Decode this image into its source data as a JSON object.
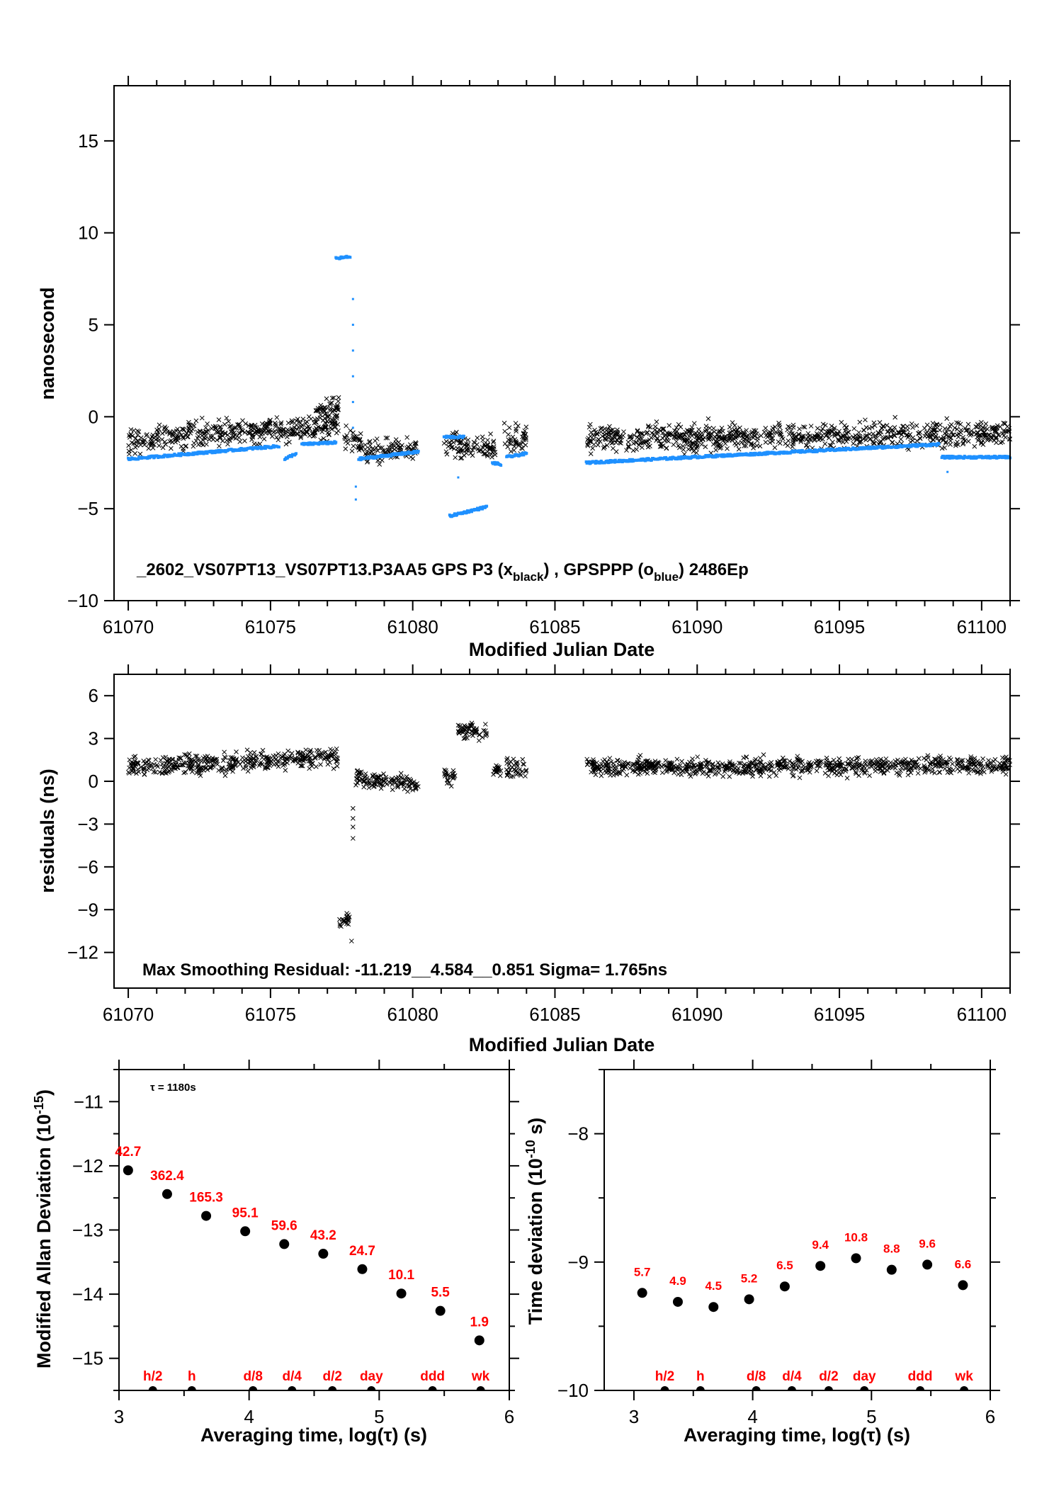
{
  "colors": {
    "series_black": "#000000",
    "series_blue": "#1e90ff",
    "label_red": "#ff0000",
    "axis": "#000000"
  },
  "chart_data": [
    {
      "id": "clock-offset",
      "type": "scatter",
      "title": "",
      "xlabel": "Modified Julian Date",
      "ylabel": "nanosecond",
      "xlim": [
        61069.5,
        61101
      ],
      "ylim": [
        -10,
        18
      ],
      "xticks": [
        61070,
        61075,
        61080,
        61085,
        61090,
        61095,
        61100
      ],
      "xtick_labels": [
        "61070",
        "61075",
        "61080",
        "61085",
        "61090",
        "61095",
        "61100"
      ],
      "yticks": [
        -10,
        -5,
        0,
        5,
        10,
        15
      ],
      "ytick_labels": [
        "−10",
        "−5",
        "0",
        "5",
        "10",
        "15"
      ],
      "annotation": {
        "prefix": "_2602_VS07PT13_VS07PT13.P3AA5    GPS P3 (x",
        "sub1": "black",
        "mid": ") ,  GPSPPP (o",
        "sub2": "blue",
        "suffix": ")  2486Ep"
      },
      "series": [
        {
          "name": "GPS P3 (x black)",
          "marker": "x",
          "color": "#000000",
          "segments": [
            {
              "x0": 61070.0,
              "x1": 61077.4,
              "y0": -1.3,
              "y1": -0.4,
              "spread": 0.9
            },
            {
              "x0": 61076.6,
              "x1": 61077.4,
              "y0": 0.2,
              "y1": 0.6,
              "spread": 0.7
            },
            {
              "x0": 61077.6,
              "x1": 61078.2,
              "y0": -1.2,
              "y1": -1.4,
              "spread": 0.9
            },
            {
              "x0": 61078.3,
              "x1": 61080.2,
              "y0": -2.0,
              "y1": -1.8,
              "spread": 0.8
            },
            {
              "x0": 61081.1,
              "x1": 61082.9,
              "y0": -1.6,
              "y1": -1.6,
              "spread": 0.9
            },
            {
              "x0": 61083.2,
              "x1": 61084.0,
              "y0": -1.2,
              "y1": -1.2,
              "spread": 0.9
            },
            {
              "x0": 61086.1,
              "x1": 61101.0,
              "y0": -1.2,
              "y1": -0.9,
              "spread": 0.9
            }
          ]
        },
        {
          "name": "GPSPPP (o blue)",
          "marker": "o",
          "color": "#1e90ff",
          "segments": [
            {
              "x0": 61070.0,
              "x1": 61075.3,
              "y0": -2.3,
              "y1": -1.6
            },
            {
              "x0": 61075.5,
              "x1": 61075.9,
              "y0": -2.3,
              "y1": -2.0
            },
            {
              "x0": 61076.1,
              "x1": 61077.3,
              "y0": -1.5,
              "y1": -1.4
            },
            {
              "x0": 61077.3,
              "x1": 61077.8,
              "y0": 8.6,
              "y1": 8.7
            },
            {
              "x0": 61078.1,
              "x1": 61080.2,
              "y0": -2.3,
              "y1": -1.9
            },
            {
              "x0": 61081.1,
              "x1": 61081.8,
              "y0": -1.1,
              "y1": -1.1
            },
            {
              "x0": 61081.3,
              "x1": 61082.6,
              "y0": -5.4,
              "y1": -4.9
            },
            {
              "x0": 61082.8,
              "x1": 61083.1,
              "y0": -2.5,
              "y1": -2.6
            },
            {
              "x0": 61083.3,
              "x1": 61084.0,
              "y0": -2.2,
              "y1": -2.0
            },
            {
              "x0": 61086.1,
              "x1": 61098.5,
              "y0": -2.5,
              "y1": -1.5
            },
            {
              "x0": 61098.6,
              "x1": 61101.0,
              "y0": -2.2,
              "y1": -2.2
            }
          ],
          "transition_points": [
            [
              61077.9,
              6.4
            ],
            [
              61077.9,
              5.0
            ],
            [
              61077.9,
              3.6
            ],
            [
              61077.9,
              2.2
            ],
            [
              61077.9,
              0.8
            ],
            [
              61077.9,
              -0.6
            ],
            [
              61078.0,
              -3.8
            ],
            [
              61078.0,
              -4.5
            ],
            [
              61081.6,
              -3.3
            ],
            [
              61098.8,
              -3.0
            ]
          ]
        }
      ]
    },
    {
      "id": "residuals",
      "type": "scatter",
      "title": "",
      "xlabel": "Modified Julian Date",
      "ylabel": "residuals (ns)",
      "xlim": [
        61069.5,
        61101
      ],
      "ylim": [
        -14.5,
        7.5
      ],
      "xticks": [
        61070,
        61075,
        61080,
        61085,
        61090,
        61095,
        61100
      ],
      "xtick_labels": [
        "61070",
        "61075",
        "61080",
        "61085",
        "61090",
        "61095",
        "61100"
      ],
      "yticks": [
        -12,
        -9,
        -6,
        -3,
        0,
        3,
        6
      ],
      "ytick_labels": [
        "−12",
        "−9",
        "−6",
        "−3",
        "0",
        "3",
        "6"
      ],
      "annotation": "Max Smoothing Residual: -11.219__4.584__0.851  Sigma= 1.765ns",
      "series": [
        {
          "name": "residuals",
          "marker": "x",
          "color": "#000000",
          "segments": [
            {
              "x0": 61070.0,
              "x1": 61077.4,
              "y0": 1.0,
              "y1": 1.7,
              "spread": 0.9
            },
            {
              "x0": 61077.4,
              "x1": 61077.8,
              "y0": -10.0,
              "y1": -9.5,
              "spread": 0.6
            },
            {
              "x0": 61078.0,
              "x1": 61080.2,
              "y0": 0.2,
              "y1": -0.2,
              "spread": 0.8
            },
            {
              "x0": 61081.1,
              "x1": 61081.5,
              "y0": 0.3,
              "y1": 0.5,
              "spread": 0.9
            },
            {
              "x0": 61081.6,
              "x1": 61082.6,
              "y0": 3.6,
              "y1": 3.4,
              "spread": 0.7
            },
            {
              "x0": 61082.8,
              "x1": 61083.1,
              "y0": 0.7,
              "y1": 0.7,
              "spread": 0.7
            },
            {
              "x0": 61083.3,
              "x1": 61084.0,
              "y0": 0.9,
              "y1": 0.9,
              "spread": 0.9
            },
            {
              "x0": 61086.1,
              "x1": 61101.0,
              "y0": 1.0,
              "y1": 1.1,
              "spread": 0.8
            }
          ],
          "transition_points": [
            [
              61077.9,
              -1.9
            ],
            [
              61077.9,
              -2.6
            ],
            [
              61077.9,
              -3.2
            ],
            [
              61077.9,
              -4.0
            ],
            [
              61077.85,
              -11.2
            ]
          ]
        }
      ]
    },
    {
      "id": "modified-allan-deviation",
      "type": "scatter",
      "title": "",
      "xlabel": "Averaging time, log(τ) (s)",
      "ylabel": "Modified Allan Deviation (10",
      "ylabel_sup": "-15",
      "ylabel_tail": ")",
      "xlim": [
        3,
        6
      ],
      "ylim": [
        -15.5,
        -10.5
      ],
      "xticks": [
        3,
        4,
        5,
        6
      ],
      "xtick_labels": [
        "3",
        "4",
        "5",
        "6"
      ],
      "yticks": [
        -15,
        -14,
        -13,
        -12,
        -11
      ],
      "ytick_labels": [
        "−15",
        "−14",
        "−13",
        "−12",
        "−11"
      ],
      "annotation": "τ = 1180s",
      "x": [
        3.07,
        3.37,
        3.67,
        3.97,
        4.27,
        4.57,
        4.87,
        5.17,
        5.47,
        5.77
      ],
      "y": [
        -12.07,
        -12.44,
        -12.78,
        -13.02,
        -13.22,
        -13.37,
        -13.61,
        -13.99,
        -14.26,
        -14.72
      ],
      "point_labels": [
        "42.7",
        "362.4",
        "165.3",
        "95.1",
        "59.6",
        "43.2",
        "24.7",
        "10.1",
        "5.5",
        "1.9"
      ],
      "markers": {
        "x": [
          3.26,
          3.56,
          4.03,
          4.33,
          4.64,
          4.94,
          5.41,
          5.78
        ],
        "labels": [
          "h/2",
          "h",
          "d/8",
          "d/4",
          "d/2",
          "day",
          "ddd",
          "wk"
        ]
      }
    },
    {
      "id": "time-deviation",
      "type": "scatter",
      "title": "",
      "xlabel": "Averaging time, log(τ) (s)",
      "ylabel": "Time deviation (10",
      "ylabel_sup": "-10",
      "ylabel_tail": " s)",
      "xlim": [
        2.75,
        6
      ],
      "ylim": [
        -10,
        -7.5
      ],
      "xticks": [
        3,
        4,
        5,
        6
      ],
      "xtick_labels": [
        "3",
        "4",
        "5",
        "6"
      ],
      "yticks": [
        -10,
        -9,
        -8
      ],
      "ytick_labels": [
        "−10",
        "−9",
        "−8"
      ],
      "x": [
        3.07,
        3.37,
        3.67,
        3.97,
        4.27,
        4.57,
        4.87,
        5.17,
        5.47,
        5.77
      ],
      "y": [
        -9.24,
        -9.31,
        -9.35,
        -9.29,
        -9.19,
        -9.03,
        -8.97,
        -9.06,
        -9.02,
        -9.18
      ],
      "point_labels": [
        "5.7",
        "4.9",
        "4.5",
        "5.2",
        "6.5",
        "9.4",
        "10.8",
        "8.8",
        "9.6",
        "6.6"
      ],
      "markers": {
        "x": [
          3.26,
          3.56,
          4.03,
          4.33,
          4.64,
          4.94,
          5.41,
          5.78
        ],
        "labels": [
          "h/2",
          "h",
          "d/8",
          "d/4",
          "d/2",
          "day",
          "ddd",
          "wk"
        ]
      }
    }
  ]
}
